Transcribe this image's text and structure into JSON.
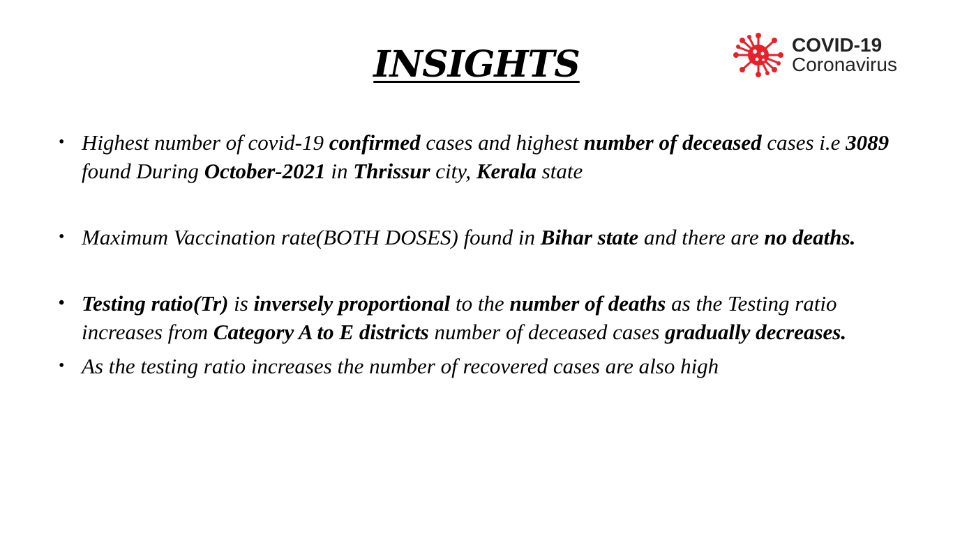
{
  "slide": {
    "title": "INSIGHTS",
    "logo": {
      "line1": "COVID-19",
      "line2": "Coronavirus",
      "icon": "virus-icon",
      "accent_color": "#e8202a"
    },
    "bullets": [
      {
        "marker": "•",
        "segments": [
          {
            "text": "Highest number of covid-19 ",
            "bold": false
          },
          {
            "text": "confirmed",
            "bold": true
          },
          {
            "text": " cases and highest ",
            "bold": false
          },
          {
            "text": "number of deceased",
            "bold": true
          },
          {
            "text": " cases i.e ",
            "bold": false
          },
          {
            "text": "3089",
            "bold": true
          },
          {
            "text": " found During ",
            "bold": false
          },
          {
            "text": "October-2021",
            "bold": true
          },
          {
            "text": " in ",
            "bold": false
          },
          {
            "text": "Thrissur",
            "bold": true
          },
          {
            "text": " city, ",
            "bold": false
          },
          {
            "text": "Kerala",
            "bold": true
          },
          {
            "text": " state",
            "bold": false
          }
        ]
      },
      {
        "marker": "•",
        "segments": [
          {
            "text": "Maximum Vaccination rate(BOTH DOSES) found in ",
            "bold": false
          },
          {
            "text": "Bihar state",
            "bold": true
          },
          {
            "text": " and there are ",
            "bold": false
          },
          {
            "text": "no deaths.",
            "bold": true
          }
        ]
      },
      {
        "marker": "•",
        "segments": [
          {
            "text": "Testing ratio(Tr)",
            "bold": true
          },
          {
            "text": " is ",
            "bold": false
          },
          {
            "text": "inversely proportional",
            "bold": true
          },
          {
            "text": " to the ",
            "bold": false
          },
          {
            "text": "number of deaths",
            "bold": true
          },
          {
            "text": " as the Testing ratio increases from ",
            "bold": false
          },
          {
            "text": "Category A to E districts",
            "bold": true
          },
          {
            "text": " number of deceased cases ",
            "bold": false
          },
          {
            "text": "gradually decreases.",
            "bold": true
          }
        ]
      },
      {
        "marker": "•",
        "segments": [
          {
            "text": "As the testing ratio increases the number of recovered cases are also high",
            "bold": false
          }
        ]
      }
    ]
  }
}
